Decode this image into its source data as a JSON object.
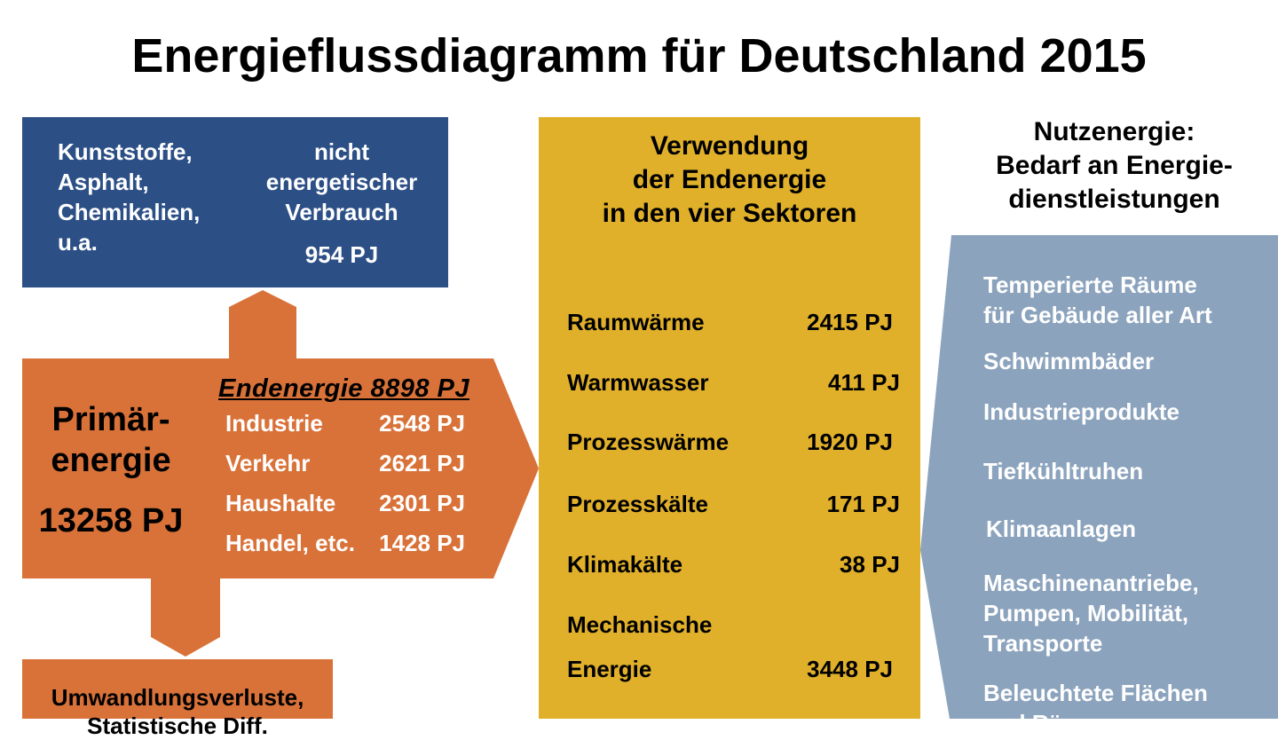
{
  "title": "Energieflussdiagramm für Deutschland 2015",
  "non_energy": {
    "items": [
      "Kunststoffe,",
      "Asphalt,",
      "Chemikalien,",
      "u.a."
    ],
    "heading": [
      "nicht",
      "energetischer",
      "Verbrauch"
    ],
    "value": "954 PJ"
  },
  "primary": {
    "label": [
      "Primär-",
      "energie"
    ],
    "value": "13258 PJ"
  },
  "final_energy": {
    "heading": "Endenergie 8898 PJ",
    "sectors": [
      {
        "name": "Industrie",
        "value": "2548 PJ"
      },
      {
        "name": "Verkehr",
        "value": "2621 PJ"
      },
      {
        "name": "Haushalte",
        "value": "2301 PJ"
      },
      {
        "name": "Handel, etc.",
        "value": "1428 PJ"
      }
    ]
  },
  "losses": {
    "label": [
      "Umwandlungsverluste,",
      "Statistische Diff."
    ]
  },
  "usage": {
    "heading": [
      "Verwendung",
      "der Endenergie",
      "in den vier Sektoren"
    ],
    "rows": [
      {
        "name": "Raumwärme",
        "value": "2415 PJ"
      },
      {
        "name": "Warmwasser",
        "value": "411 PJ"
      },
      {
        "name": "Prozesswärme",
        "value": "1920 PJ"
      },
      {
        "name": "Prozesskälte",
        "value": "171 PJ"
      },
      {
        "name": "Klimakälte",
        "value": "38 PJ"
      },
      {
        "name": "Mechanische",
        "value": ""
      },
      {
        "name": "Energie",
        "value": "3448 PJ"
      }
    ]
  },
  "useful_energy": {
    "heading": [
      "Nutzenergie:",
      "Bedarf an Energie-",
      "dienstleistungen"
    ],
    "items": [
      [
        "Temperierte Räume",
        "für Gebäude aller Art"
      ],
      [
        "Schwimmbäder"
      ],
      [
        "Industrieprodukte"
      ],
      [
        "Tiefkühltruhen"
      ],
      [
        "Klimaanlagen"
      ],
      [
        "Maschinenantriebe,",
        "Pumpen, Mobilität,",
        "Transporte"
      ],
      [
        "Beleuchtete Flächen",
        "und Räume"
      ]
    ]
  },
  "colors": {
    "non_energy_box": "#2c4f86",
    "primary_arrow": "#d97239",
    "usage_box": "#e0b02b",
    "useful_box": "#8ba3bd"
  }
}
